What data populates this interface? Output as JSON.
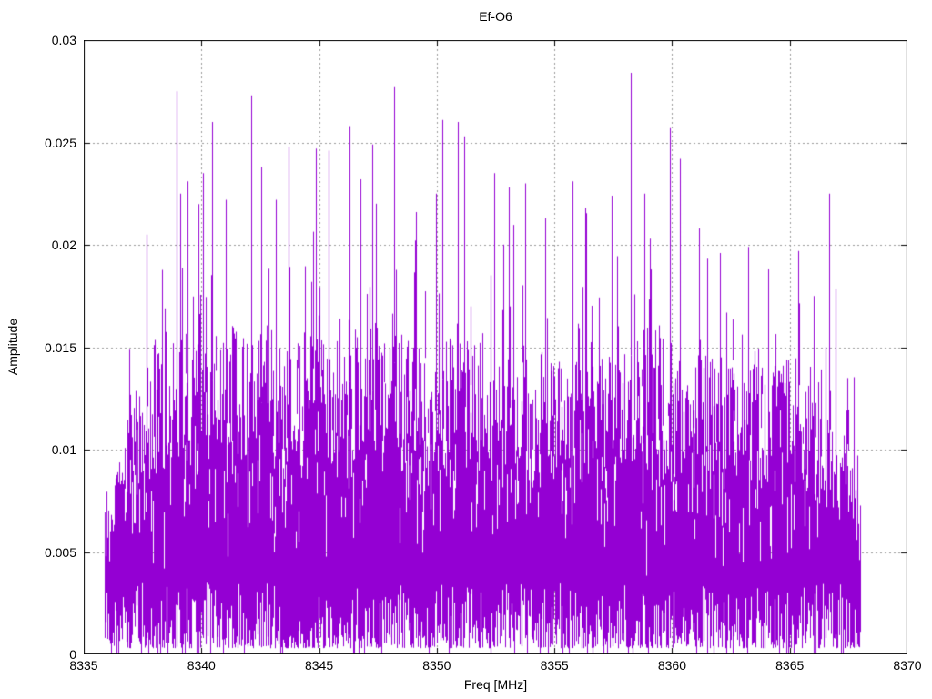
{
  "chart_data": {
    "type": "line",
    "subtype": "noisy-spectrum",
    "title": "Ef-O6",
    "xlabel": "Freq [MHz]",
    "ylabel": "Amplitude",
    "xlim": [
      8335,
      8370
    ],
    "ylim": [
      0,
      0.03
    ],
    "x_ticks": [
      8335,
      8340,
      8345,
      8350,
      8355,
      8360,
      8365,
      8370
    ],
    "x_tick_labels": [
      "8335",
      "8340",
      "8345",
      "8350",
      "8355",
      "8360",
      "8365",
      "8370"
    ],
    "y_ticks": [
      0,
      0.005,
      0.01,
      0.015,
      0.02,
      0.025,
      0.03
    ],
    "y_tick_labels": [
      "0",
      "0.005",
      "0.01",
      "0.015",
      "0.02",
      "0.025",
      "0.03"
    ],
    "grid": true,
    "grid_style": "dashed",
    "grid_color": "#9a9a9a",
    "border_color": "#000000",
    "line_color": "#9400D3",
    "background_color": "#ffffff",
    "legend": "none",
    "data_range": [
      8335.9,
      8368.0
    ],
    "noise_seed": 1337,
    "dense_band_envelope": [
      [
        8335.9,
        0.0045
      ],
      [
        8336.2,
        0.0075
      ],
      [
        8336.6,
        0.0092
      ],
      [
        8337.2,
        0.0108
      ],
      [
        8338.0,
        0.0125
      ],
      [
        8339.0,
        0.013
      ],
      [
        8341.0,
        0.0128
      ],
      [
        8343.0,
        0.0122
      ],
      [
        8345.0,
        0.0124
      ],
      [
        8347.0,
        0.0128
      ],
      [
        8349.0,
        0.0126
      ],
      [
        8351.0,
        0.0124
      ],
      [
        8353.0,
        0.0118
      ],
      [
        8355.0,
        0.012
      ],
      [
        8357.0,
        0.0126
      ],
      [
        8359.0,
        0.0128
      ],
      [
        8360.5,
        0.0122
      ],
      [
        8362.0,
        0.0114
      ],
      [
        8363.5,
        0.0114
      ],
      [
        8365.0,
        0.0113
      ],
      [
        8366.0,
        0.0106
      ],
      [
        8366.8,
        0.0096
      ],
      [
        8367.4,
        0.0086
      ],
      [
        8368.0,
        0.0062
      ]
    ],
    "major_peaks": [
      [
        8337.65,
        0.0205
      ],
      [
        8338.95,
        0.0275
      ],
      [
        8339.4,
        0.0231
      ],
      [
        8340.05,
        0.0235
      ],
      [
        8340.45,
        0.026
      ],
      [
        8341.05,
        0.0222
      ],
      [
        8342.1,
        0.0273
      ],
      [
        8342.55,
        0.0238
      ],
      [
        8343.15,
        0.0222
      ],
      [
        8343.7,
        0.0248
      ],
      [
        8344.85,
        0.0247
      ],
      [
        8345.4,
        0.0246
      ],
      [
        8346.3,
        0.0258
      ],
      [
        8346.75,
        0.0232
      ],
      [
        8347.25,
        0.0249
      ],
      [
        8348.2,
        0.0277
      ],
      [
        8349.1,
        0.0216
      ],
      [
        8350.25,
        0.0261
      ],
      [
        8350.9,
        0.026
      ],
      [
        8351.15,
        0.0253
      ],
      [
        8352.45,
        0.0235
      ],
      [
        8353.05,
        0.0228
      ],
      [
        8353.75,
        0.023
      ],
      [
        8354.6,
        0.0213
      ],
      [
        8355.75,
        0.0231
      ],
      [
        8356.3,
        0.0218
      ],
      [
        8357.45,
        0.0224
      ],
      [
        8358.25,
        0.0284
      ],
      [
        8359.05,
        0.0203
      ],
      [
        8359.9,
        0.0257
      ],
      [
        8360.35,
        0.0242
      ],
      [
        8361.15,
        0.0208
      ],
      [
        8362.05,
        0.0196
      ],
      [
        8363.25,
        0.0199
      ],
      [
        8364.1,
        0.0188
      ],
      [
        8365.35,
        0.0197
      ],
      [
        8366.0,
        0.0175
      ],
      [
        8366.5,
        0.015
      ]
    ],
    "noise": {
      "band_top_factor_min": 0.7,
      "band_top_factor_span": 0.55,
      "small_spike_prob": 0.3,
      "small_spike_scale": 0.002,
      "mid_spike_prob": 0.045,
      "mid_spike_base": 0.004,
      "mid_spike_scale": 0.0035,
      "hole_prob": 0.3,
      "bottom_base": 0.0003,
      "bottom_var": 0.0032,
      "bottom_zero_prob": 0.05
    }
  }
}
